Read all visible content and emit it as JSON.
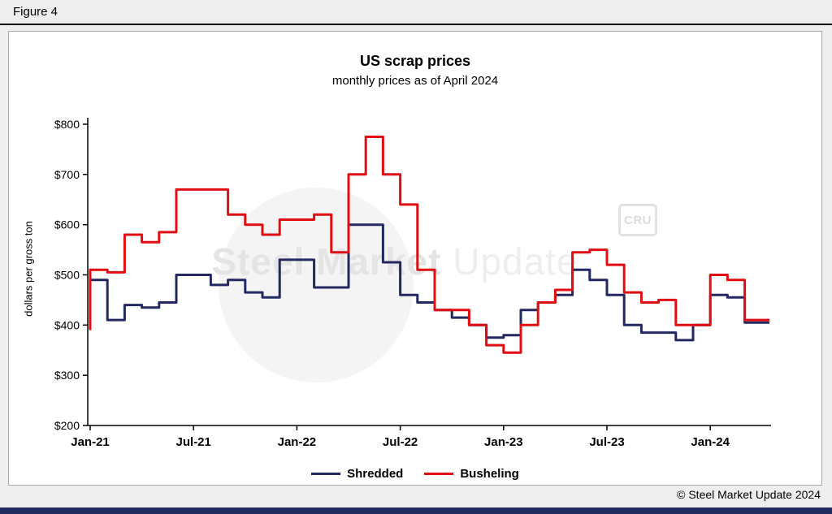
{
  "figure_label": "Figure 4",
  "chart_data": {
    "type": "line",
    "style": "step",
    "title": "US scrap prices",
    "subtitle": "monthly prices as of April 2024",
    "ylabel": "dollars per gross ton",
    "ylim": [
      200,
      800
    ],
    "ytick_step": 100,
    "ytick_labels": [
      "$200",
      "$300",
      "$400",
      "$500",
      "$600",
      "$700",
      "$800"
    ],
    "x_ticks": [
      {
        "label": "Jan-21",
        "month": 0
      },
      {
        "label": "Jul-21",
        "month": 6
      },
      {
        "label": "Jan-22",
        "month": 12
      },
      {
        "label": "Jul-22",
        "month": 18
      },
      {
        "label": "Jan-23",
        "month": 24
      },
      {
        "label": "Jul-23",
        "month": 30
      },
      {
        "label": "Jan-24",
        "month": 36
      }
    ],
    "x_range_note": "monthly values Jan-2021 through Apr-2024",
    "grid": false,
    "legend_position": "bottom",
    "series": [
      {
        "name": "Shredded",
        "color": "#232960",
        "values": [
          430,
          490,
          410,
          440,
          435,
          445,
          500,
          500,
          480,
          490,
          465,
          455,
          530,
          530,
          475,
          475,
          600,
          600,
          525,
          460,
          445,
          430,
          415,
          400,
          375,
          380,
          430,
          445,
          460,
          510,
          490,
          460,
          400,
          385,
          385,
          370,
          400,
          460,
          455,
          405
        ]
      },
      {
        "name": "Busheling",
        "color": "#e00d12",
        "values": [
          390,
          510,
          505,
          580,
          565,
          585,
          670,
          670,
          670,
          620,
          600,
          580,
          610,
          610,
          620,
          545,
          700,
          775,
          700,
          640,
          510,
          430,
          430,
          400,
          360,
          345,
          400,
          445,
          470,
          545,
          550,
          520,
          465,
          445,
          450,
          400,
          400,
          500,
          490,
          410
        ]
      }
    ]
  },
  "watermark": {
    "bold": "Steel Market",
    "light": " Update",
    "cru": "CRU"
  },
  "footer": {
    "copyright": "© Steel Market Update 2024"
  },
  "colors": {
    "page_bg": "#efeeee",
    "panel_bg": "#ffffff",
    "panel_border": "#a8a8a8",
    "axis": "#000000",
    "accent_bar": "#1f2a5e",
    "shredded": "#232960",
    "busheling": "#e00d12"
  }
}
